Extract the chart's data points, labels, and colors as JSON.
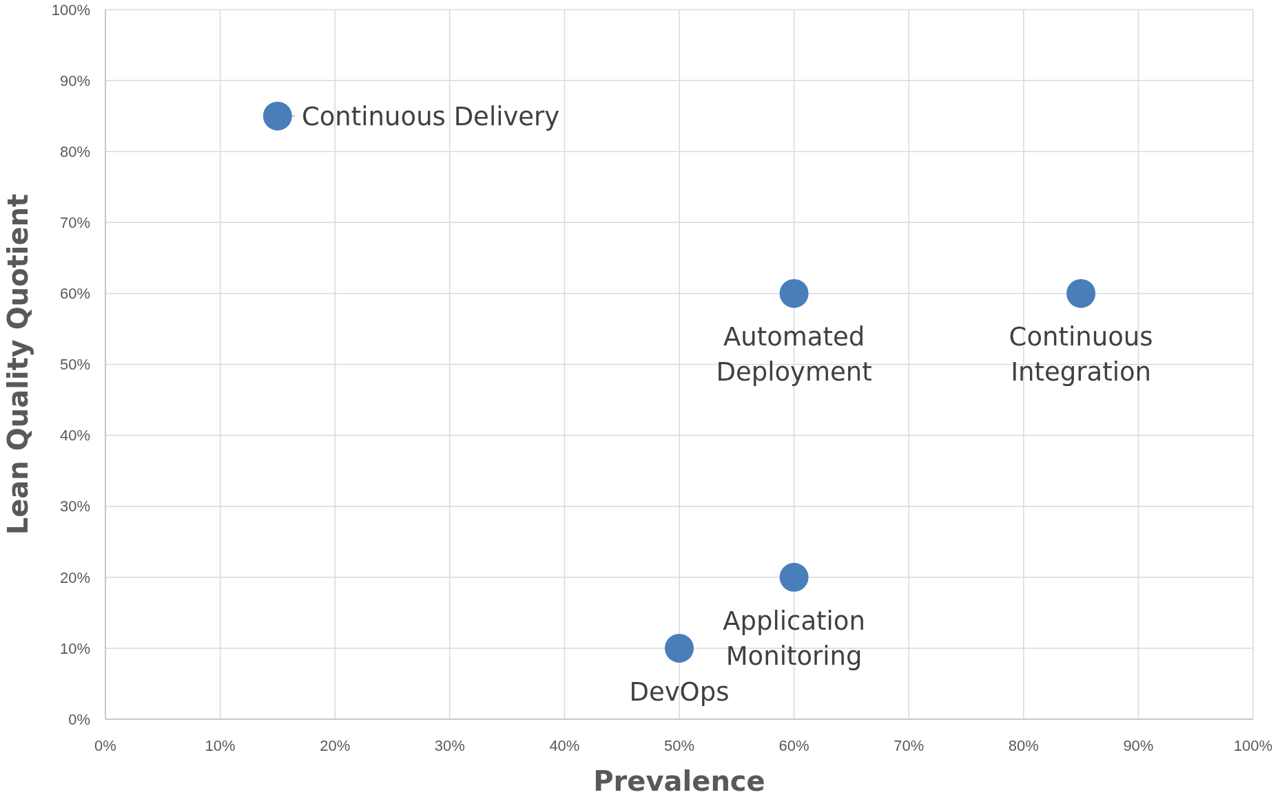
{
  "chart_data": {
    "type": "scatter",
    "xlabel": "Prevalence",
    "ylabel": "Lean Quality Quotient",
    "x": [
      15,
      60,
      85,
      60,
      50
    ],
    "series": [
      {
        "color": "#4a7ebb",
        "values": [
          85,
          60,
          60,
          20,
          10
        ]
      }
    ],
    "xlim": [
      0,
      100
    ],
    "ylim": [
      0,
      100
    ],
    "xticks": [
      {
        "value": 0,
        "label": "0%"
      },
      {
        "value": 10,
        "label": "10%"
      },
      {
        "value": 20,
        "label": "20%"
      },
      {
        "value": 30,
        "label": "30%"
      },
      {
        "value": 40,
        "label": "40%"
      },
      {
        "value": 50,
        "label": "50%"
      },
      {
        "value": 60,
        "label": "60%"
      },
      {
        "value": 70,
        "label": "70%"
      },
      {
        "value": 80,
        "label": "80%"
      },
      {
        "value": 90,
        "label": "90%"
      },
      {
        "value": 100,
        "label": "100%"
      }
    ],
    "yticks": [
      {
        "value": 0,
        "label": "0%"
      },
      {
        "value": 10,
        "label": "10%"
      },
      {
        "value": 20,
        "label": "20%"
      },
      {
        "value": 30,
        "label": "30%"
      },
      {
        "value": 40,
        "label": "40%"
      },
      {
        "value": 50,
        "label": "50%"
      },
      {
        "value": 60,
        "label": "60%"
      },
      {
        "value": 70,
        "label": "70%"
      },
      {
        "value": 80,
        "label": "80%"
      },
      {
        "value": 90,
        "label": "90%"
      },
      {
        "value": 100,
        "label": "100%"
      }
    ],
    "grid": true,
    "marker": "circle",
    "annotations": [
      {
        "text": "Continuous Delivery",
        "x": 15,
        "y": 85
      },
      {
        "text": "Automated\nDeployment",
        "x": 60,
        "y": 60
      },
      {
        "text": "Continuous\nIntegration",
        "x": 85,
        "y": 60
      },
      {
        "text": "Application\nMonitoring",
        "x": 60,
        "y": 20
      },
      {
        "text": "DevOps",
        "x": 50,
        "y": 10
      }
    ]
  }
}
